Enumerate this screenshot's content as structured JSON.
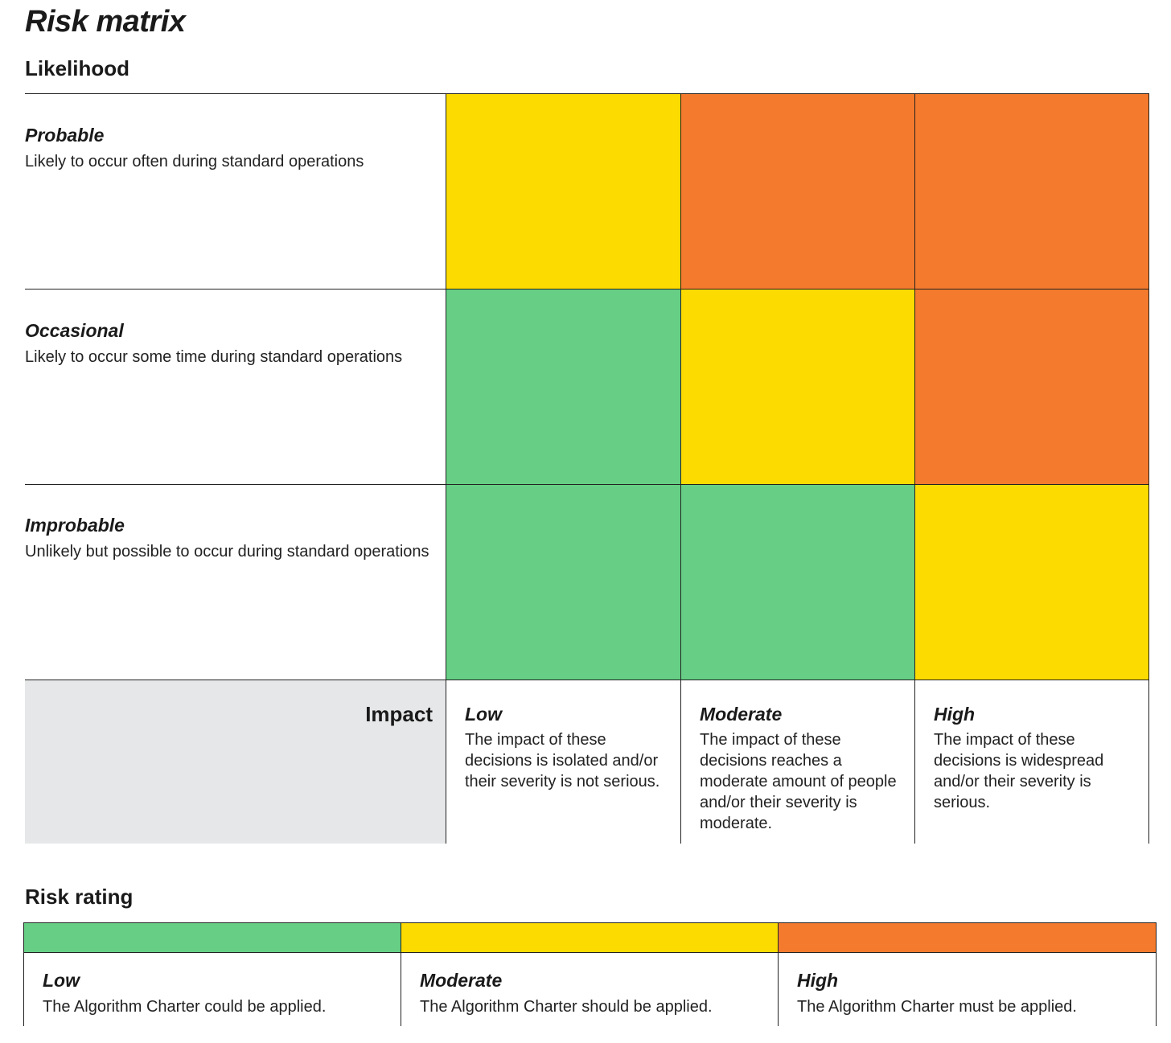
{
  "title": "Risk matrix",
  "likelihood_heading": "Likelihood",
  "likelihood_rows": [
    {
      "name": "Probable",
      "description": "Likely to occur often during standard operations"
    },
    {
      "name": "Occasional",
      "description": "Likely to occur some time during standard operations"
    },
    {
      "name": "Improbable",
      "description": "Unlikely but possible to occur during standard operations"
    }
  ],
  "impact_heading": "Impact",
  "impact_columns": [
    {
      "name": "Low",
      "description": "The impact of these decisions is isolated and/or their severity is not serious."
    },
    {
      "name": "Moderate",
      "description": "The impact of these decisions reaches a moderate amount of people and/or their severity is moderate."
    },
    {
      "name": "High",
      "description": "The impact of these decisions is widespread and/or their severity is serious."
    }
  ],
  "matrix": [
    [
      "moderate",
      "high",
      "high"
    ],
    [
      "low",
      "moderate",
      "high"
    ],
    [
      "low",
      "low",
      "moderate"
    ]
  ],
  "colors": {
    "low": "#66cf85",
    "moderate": "#fcdb00",
    "high": "#f47a2d",
    "impact_bg": "#e6e7e8"
  },
  "risk_rating_heading": "Risk rating",
  "risk_ratings": [
    {
      "level": "low",
      "name": "Low",
      "description": "The Algorithm Charter could be applied."
    },
    {
      "level": "moderate",
      "name": "Moderate",
      "description": "The Algorithm Charter should be applied."
    },
    {
      "level": "high",
      "name": "High",
      "description": "The Algorithm Charter must be applied."
    }
  ]
}
